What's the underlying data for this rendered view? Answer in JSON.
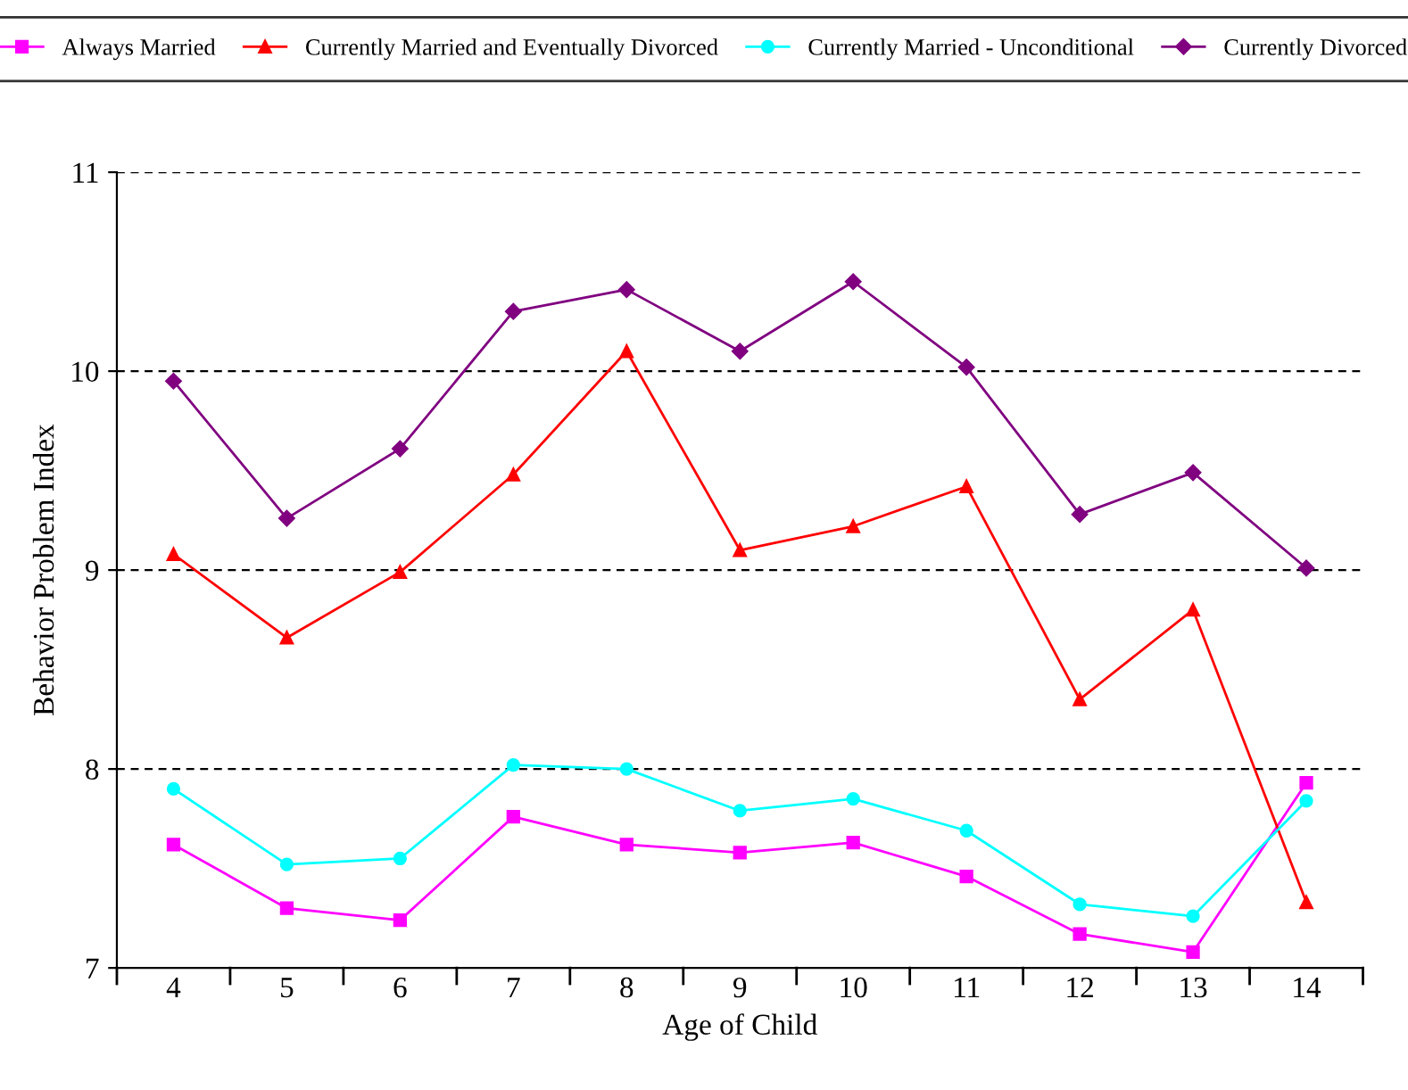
{
  "chart_data": {
    "type": "line",
    "xlabel": "Age of Child",
    "ylabel": "Behavior Problem Index",
    "categories": [
      "4",
      "5",
      "6",
      "7",
      "8",
      "9",
      "10",
      "11",
      "12",
      "13",
      "14"
    ],
    "ylim": [
      7,
      11
    ],
    "yticks": [
      7,
      8,
      9,
      10,
      11
    ],
    "grid": "y",
    "legend": "top",
    "series": [
      {
        "name": "Always Married",
        "color": "#ff00ff",
        "marker": "square",
        "values": [
          7.62,
          7.3,
          7.24,
          7.76,
          7.62,
          7.58,
          7.63,
          7.46,
          7.17,
          7.08,
          7.93
        ]
      },
      {
        "name": "Currently Married and Eventually Divorced",
        "color": "#ff0000",
        "marker": "triangle",
        "values": [
          9.08,
          8.66,
          8.99,
          9.48,
          10.1,
          9.1,
          9.22,
          9.42,
          8.35,
          8.8,
          7.33
        ]
      },
      {
        "name": "Currently Married - Unconditional",
        "color": "#00ffff",
        "marker": "circle",
        "values": [
          7.9,
          7.52,
          7.55,
          8.02,
          8.0,
          7.79,
          7.85,
          7.69,
          7.32,
          7.26,
          7.84
        ]
      },
      {
        "name": "Currently Divorced",
        "color": "#800080",
        "marker": "diamond",
        "values": [
          9.95,
          9.26,
          9.61,
          10.3,
          10.41,
          10.1,
          10.45,
          10.02,
          9.28,
          9.49,
          9.01
        ]
      }
    ]
  }
}
